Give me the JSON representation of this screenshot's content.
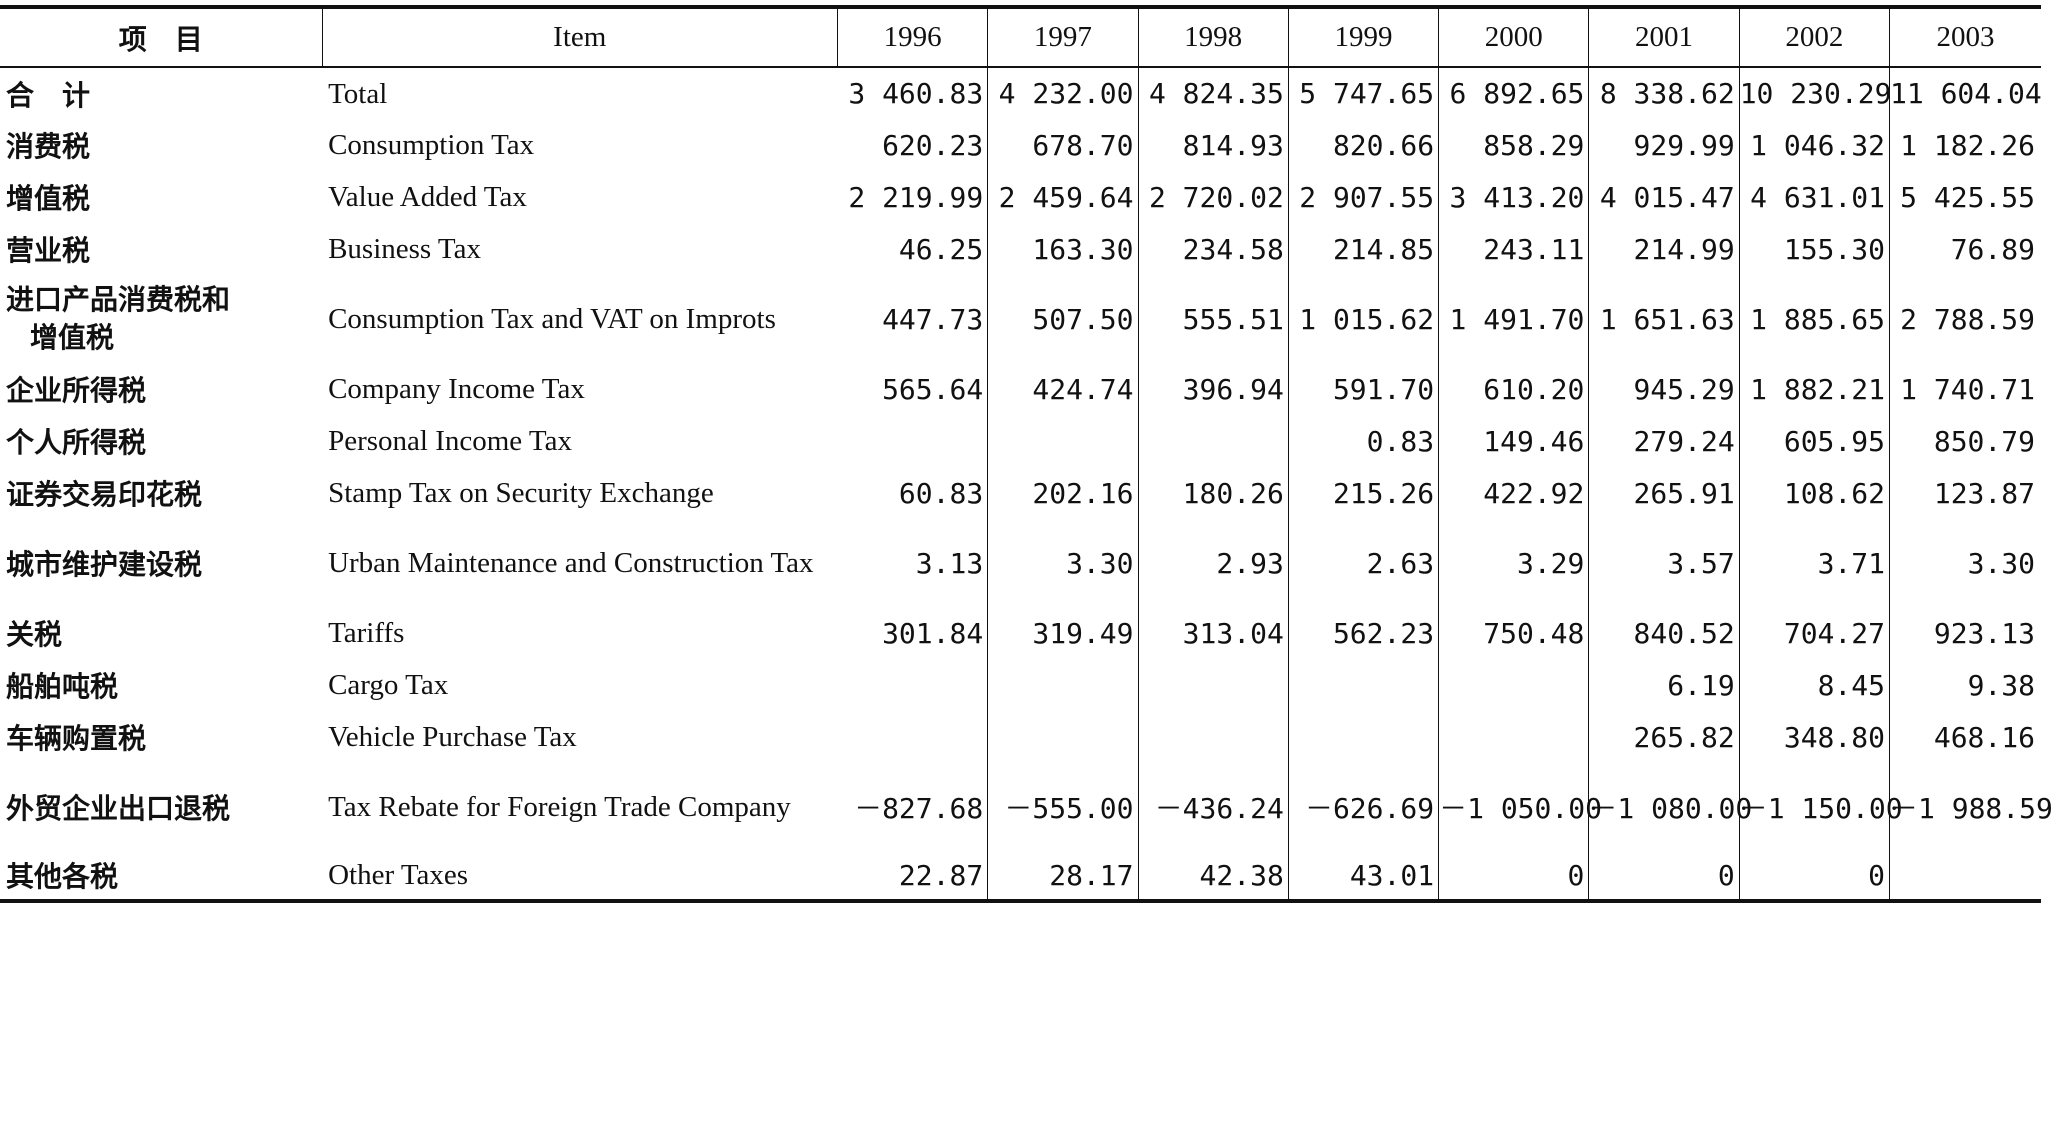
{
  "headers": {
    "item_zh": "项　目",
    "item_en": "Item",
    "years": [
      "1996",
      "1997",
      "1998",
      "1999",
      "2000",
      "2001",
      "2002",
      "2003"
    ]
  },
  "rows": [
    {
      "zh": "合　计",
      "en": "Total",
      "values": [
        "3 460.83",
        "4 232.00",
        "4 824.35",
        "5 747.65",
        "6 892.65",
        "8 338.62",
        "10 230.29",
        "11 604.04"
      ]
    },
    {
      "zh": "消费税",
      "en": "Consumption Tax",
      "values": [
        "620.23",
        "678.70",
        "814.93",
        "820.66",
        "858.29",
        "929.99",
        "1 046.32",
        "1 182.26"
      ]
    },
    {
      "zh": "增值税",
      "en": "Value Added Tax",
      "values": [
        "2 219.99",
        "2 459.64",
        "2 720.02",
        "2 907.55",
        "3 413.20",
        "4 015.47",
        "4 631.01",
        "5 425.55"
      ]
    },
    {
      "zh": "营业税",
      "en": "Business Tax",
      "values": [
        "46.25",
        "163.30",
        "234.58",
        "214.85",
        "243.11",
        "214.99",
        "155.30",
        "76.89"
      ]
    },
    {
      "zh": "进口产品消费税和",
      "zh2": "增值税",
      "en": "Consumption Tax and VAT on Improts",
      "values": [
        "447.73",
        "507.50",
        "555.51",
        "1 015.62",
        "1 491.70",
        "1 651.63",
        "1 885.65",
        "2 788.59"
      ]
    },
    {
      "zh": "企业所得税",
      "en": "Company Income Tax",
      "values": [
        "565.64",
        "424.74",
        "396.94",
        "591.70",
        "610.20",
        "945.29",
        "1 882.21",
        "1 740.71"
      ]
    },
    {
      "zh": "个人所得税",
      "en": "Personal Income Tax",
      "values": [
        "",
        "",
        "",
        "0.83",
        "149.46",
        "279.24",
        "605.95",
        "850.79"
      ]
    },
    {
      "zh": "证券交易印花税",
      "en": "Stamp Tax on Security Exchange",
      "values": [
        "60.83",
        "202.16",
        "180.26",
        "215.26",
        "422.92",
        "265.91",
        "108.62",
        "123.87"
      ]
    },
    {
      "zh": "城市维护建设税",
      "en": "Urban Maintenance and Construction Tax",
      "values": [
        "3.13",
        "3.30",
        "2.93",
        "2.63",
        "3.29",
        "3.57",
        "3.71",
        "3.30"
      ]
    },
    {
      "zh": "关税",
      "en": "Tariffs",
      "values": [
        "301.84",
        "319.49",
        "313.04",
        "562.23",
        "750.48",
        "840.52",
        "704.27",
        "923.13"
      ]
    },
    {
      "zh": "船舶吨税",
      "en": "Cargo Tax",
      "values": [
        "",
        "",
        "",
        "",
        "",
        "6.19",
        "8.45",
        "9.38"
      ]
    },
    {
      "zh": "车辆购置税",
      "en": "Vehicle Purchase Tax",
      "values": [
        "",
        "",
        "",
        "",
        "",
        "265.82",
        "348.80",
        "468.16"
      ]
    },
    {
      "zh": "外贸企业出口退税",
      "en": "Tax Rebate for Foreign Trade Company",
      "values": [
        "－827.68",
        "－555.00",
        "－436.24",
        "－626.69",
        "－1 050.00",
        "－1 080.00",
        "－1 150.00",
        "－1 988.59"
      ]
    },
    {
      "zh": "其他各税",
      "en": "Other Taxes",
      "values": [
        "22.87",
        "28.17",
        "42.38",
        "43.01",
        "0",
        "0",
        "0",
        ""
      ]
    }
  ]
}
